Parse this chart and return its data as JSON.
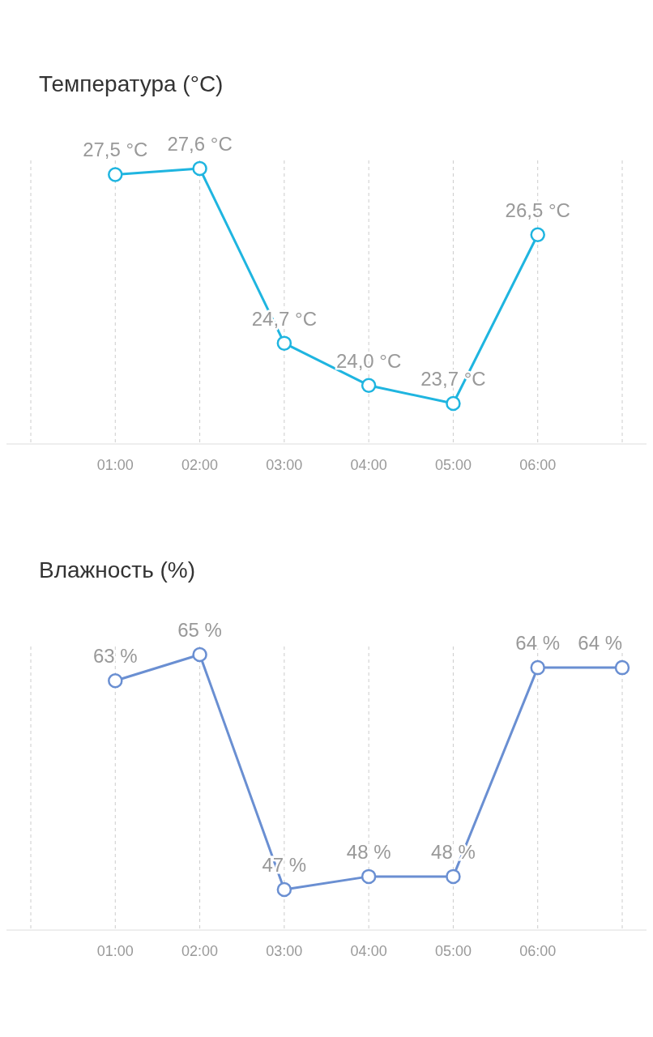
{
  "chart_data": [
    {
      "type": "line",
      "title": "Температура (°C)",
      "categories": [
        null,
        "01:00",
        "02:00",
        "03:00",
        "04:00",
        "05:00",
        "06:00",
        null
      ],
      "values": [
        null,
        27.5,
        27.6,
        24.7,
        24.0,
        23.7,
        26.5,
        null
      ],
      "value_labels": [
        null,
        "27,5 °C",
        "27,6 °C",
        "24,7 °C",
        "24,0 °C",
        "23,7 °C",
        "26,5 °C",
        null
      ],
      "color": "#1fb5e0",
      "marker": "circle",
      "grid": "x"
    },
    {
      "type": "line",
      "title": "Влажность (%)",
      "categories": [
        null,
        "01:00",
        "02:00",
        "03:00",
        "04:00",
        "05:00",
        "06:00",
        null
      ],
      "values": [
        null,
        63,
        65,
        47,
        48,
        48,
        64,
        64
      ],
      "value_labels": [
        null,
        "63 %",
        "65 %",
        "47 %",
        "48 %",
        "48 %",
        "64 %",
        "64 %"
      ],
      "color": "#6a8fd2",
      "marker": "circle",
      "grid": "x"
    }
  ]
}
